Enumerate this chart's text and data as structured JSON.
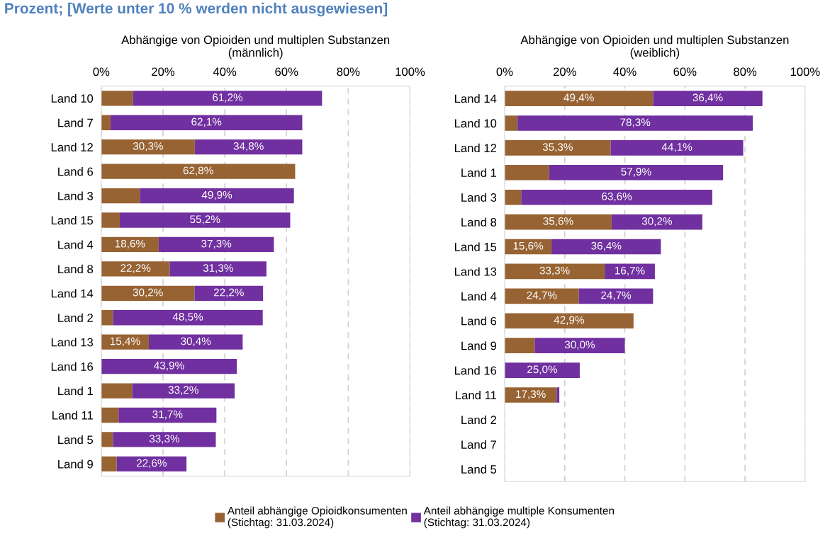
{
  "chart_data": [
    {
      "type": "bar",
      "orientation": "horizontal",
      "stacked": true,
      "title": "Abhängige von Opioiden und multiplen Substanzen\n(männlich)",
      "annotations": [
        "Prozent; [Werte unter 10 % werden nicht ausgewiesen]"
      ],
      "categories": [
        "Land 10",
        "Land 7",
        "Land 12",
        "Land 6",
        "Land 3",
        "Land 15",
        "Land 4",
        "Land 8",
        "Land 14",
        "Land 2",
        "Land 13",
        "Land 16",
        "Land 1",
        "Land 11",
        "Land 5",
        "Land 9"
      ],
      "series": [
        {
          "name": "Anteil abhängige Opioidkonsumenten\n(Stichtag: 31.03.2024)",
          "color": "#976333",
          "values": [
            10.3,
            3.0,
            30.3,
            62.8,
            12.5,
            6.0,
            18.6,
            22.2,
            30.2,
            3.8,
            15.4,
            null,
            10.0,
            5.6,
            3.8,
            5.0
          ],
          "value_labels": [
            null,
            null,
            "30,3%",
            "62,8%",
            null,
            null,
            "18,6%",
            "22,2%",
            "30,2%",
            null,
            "15,4%",
            null,
            null,
            null,
            null,
            null
          ]
        },
        {
          "name": "Anteil abhängige multiple Konsumenten\n(Stichtag: 31.03.2024)",
          "color": "#7030a0",
          "values": [
            61.2,
            62.1,
            34.8,
            null,
            49.9,
            55.2,
            37.3,
            31.3,
            22.2,
            48.5,
            30.4,
            43.9,
            33.2,
            31.7,
            33.3,
            22.6
          ],
          "value_labels": [
            "61,2%",
            "62,1%",
            "34,8%",
            null,
            "49,9%",
            "55,2%",
            "37,3%",
            "31,3%",
            "22,2%",
            "48,5%",
            "30,4%",
            "43,9%",
            "33,2%",
            "31,7%",
            "33,3%",
            "22,6%"
          ]
        }
      ],
      "xlim": [
        0,
        100
      ],
      "xticks": [
        {
          "value": 0,
          "label": "0%"
        },
        {
          "value": 20,
          "label": "20%"
        },
        {
          "value": 40,
          "label": "40%"
        },
        {
          "value": 60,
          "label": "60%"
        },
        {
          "value": 80,
          "label": "80%"
        },
        {
          "value": 100,
          "label": "100%"
        }
      ],
      "grid": "x",
      "legend": "bottom"
    },
    {
      "type": "bar",
      "orientation": "horizontal",
      "stacked": true,
      "title": "Abhängige von Opioiden und multiplen Substanzen\n(weiblich)",
      "categories": [
        "Land 14",
        "Land 10",
        "Land 12",
        "Land 1",
        "Land 3",
        "Land 8",
        "Land 15",
        "Land 13",
        "Land 4",
        "Land 6",
        "Land 9",
        "Land 16",
        "Land 11",
        "Land 2",
        "Land 7",
        "Land 5"
      ],
      "series": [
        {
          "color": "#976333",
          "values": [
            49.4,
            4.3,
            35.3,
            14.8,
            5.5,
            35.6,
            15.6,
            33.3,
            24.7,
            42.9,
            10.0,
            null,
            17.3,
            null,
            null,
            null
          ],
          "value_labels": [
            "49,4%",
            null,
            "35,3%",
            null,
            null,
            "35,6%",
            "15,6%",
            "33,3%",
            "24,7%",
            "42,9%",
            null,
            null,
            "17,3%",
            null,
            null,
            null
          ]
        },
        {
          "color": "#7030a0",
          "values": [
            36.4,
            78.3,
            44.1,
            57.9,
            63.6,
            30.2,
            36.4,
            16.7,
            24.7,
            null,
            30.0,
            25.0,
            0.9,
            null,
            null,
            null
          ],
          "value_labels": [
            "36,4%",
            "78,3%",
            "44,1%",
            "57,9%",
            "63,6%",
            "30,2%",
            "36,4%",
            "16,7%",
            "24,7%",
            null,
            "30,0%",
            "25,0%",
            null,
            null,
            null,
            null
          ]
        }
      ],
      "xlim": [
        0,
        100
      ],
      "xticks": [
        {
          "value": 0,
          "label": "0%"
        },
        {
          "value": 20,
          "label": "20%"
        },
        {
          "value": 40,
          "label": "40%"
        },
        {
          "value": 60,
          "label": "60%"
        },
        {
          "value": 80,
          "label": "80%"
        },
        {
          "value": 100,
          "label": "100%"
        }
      ],
      "grid": "x"
    }
  ]
}
